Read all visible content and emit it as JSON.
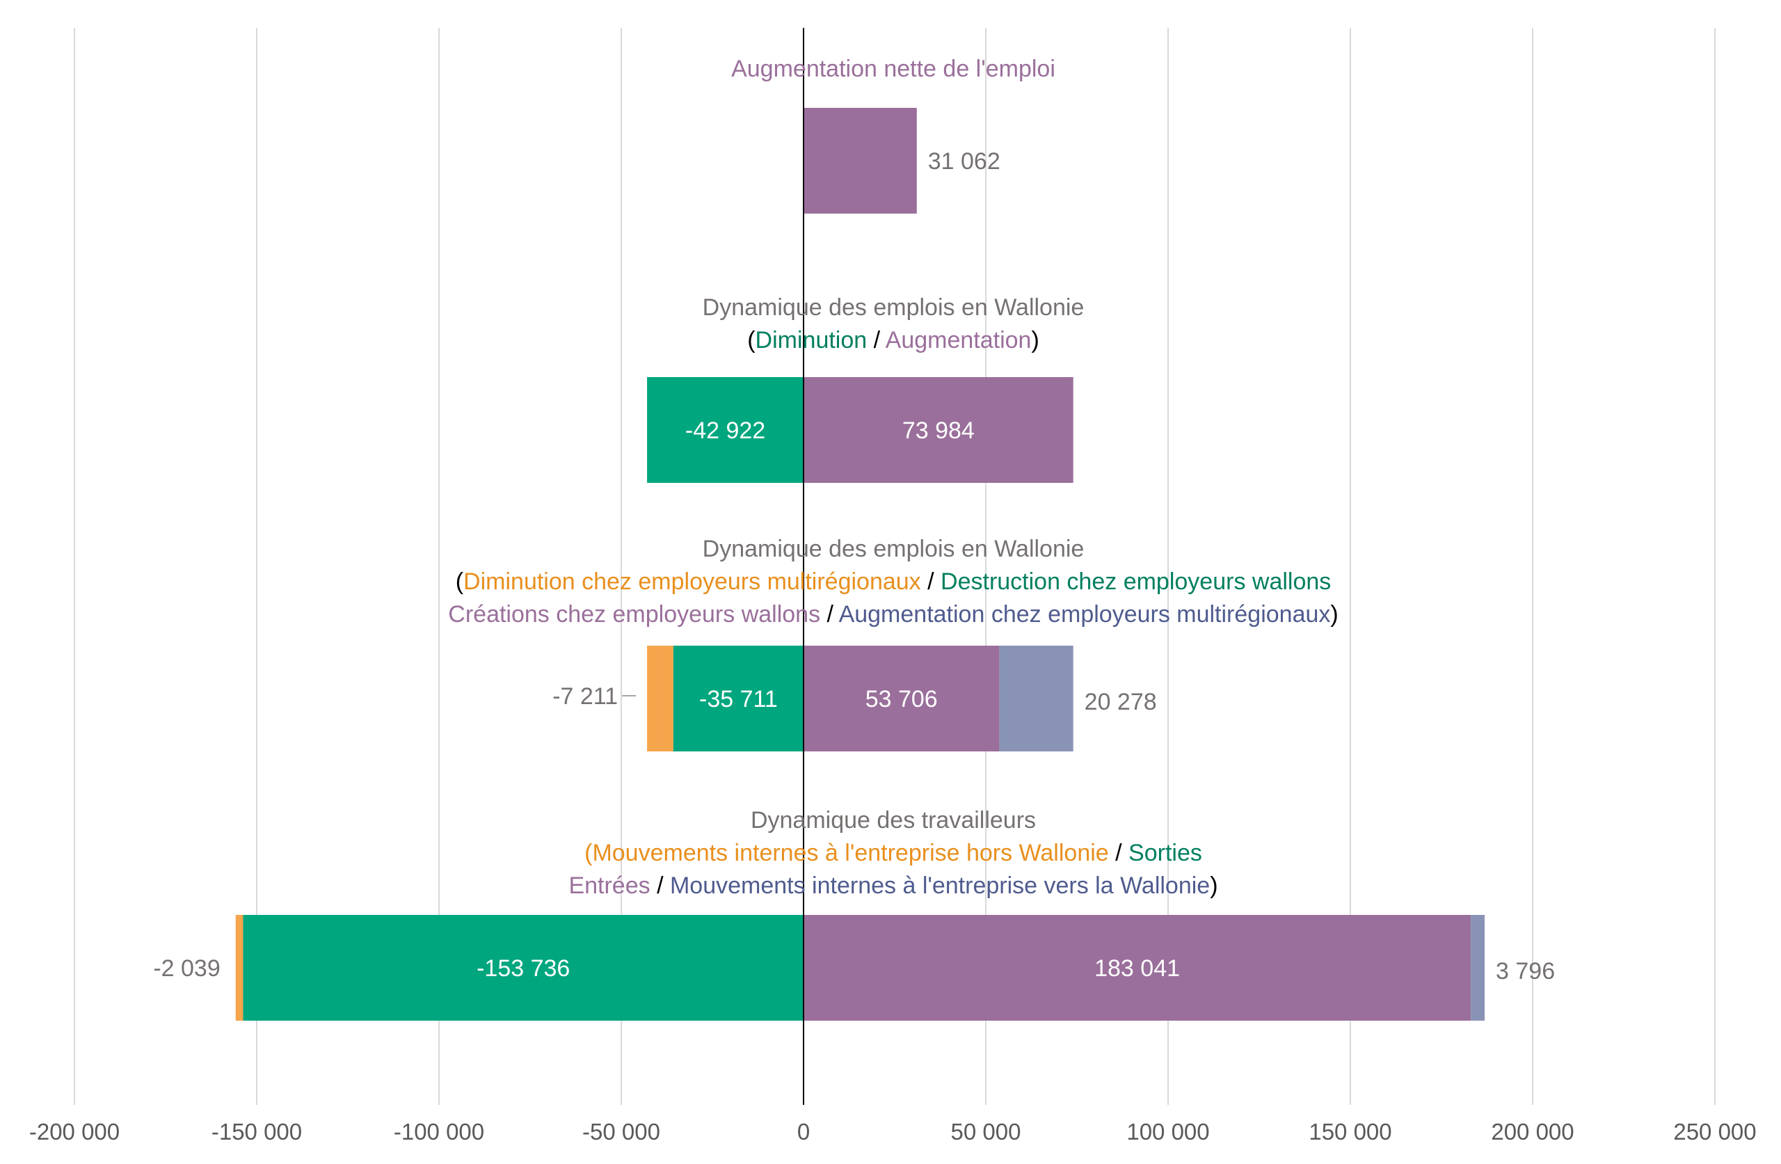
{
  "chart_data": {
    "type": "bar",
    "orientation": "horizontal",
    "stacked": true,
    "xlim": [
      -200000,
      250000
    ],
    "x_ticks": [
      {
        "value": -200000,
        "label": "-200 000"
      },
      {
        "value": -150000,
        "label": "-150 000"
      },
      {
        "value": -100000,
        "label": "-100 000"
      },
      {
        "value": -50000,
        "label": "-50 000"
      },
      {
        "value": 0,
        "label": "0"
      },
      {
        "value": 50000,
        "label": "50 000"
      },
      {
        "value": 100000,
        "label": "100 000"
      },
      {
        "value": 150000,
        "label": "150 000"
      },
      {
        "value": 200000,
        "label": "200 000"
      },
      {
        "value": 250000,
        "label": "250 000"
      }
    ],
    "grid": "vertical",
    "colors": {
      "purple": "#9a6f9b",
      "green": "#00a67e",
      "orange": "#f5a54b",
      "blue": "#8993b5",
      "gray_text": "#767171",
      "orange_text": "#e98f1d",
      "green_text": "#007f5f",
      "purple_text": "#9a6f9b",
      "blue_text": "#4f5b8e",
      "black": "#000000"
    },
    "groups": [
      {
        "label_lines": [
          [
            {
              "text": "Augmentation nette de l'emploi",
              "color": "purple_text"
            }
          ]
        ],
        "segments": [
          {
            "start": 0,
            "value": 31062,
            "color": "purple",
            "label": "31 062",
            "label_pos": "outside-right"
          }
        ]
      },
      {
        "label_lines": [
          [
            {
              "text": "Dynamique des emplois en Wallonie",
              "color": "gray_text"
            }
          ],
          [
            {
              "text": "(",
              "color": "black"
            },
            {
              "text": "Diminution",
              "color": "green_text"
            },
            {
              "text": " / ",
              "color": "black"
            },
            {
              "text": "Augmentation",
              "color": "purple_text"
            },
            {
              "text": ")",
              "color": "black"
            }
          ]
        ],
        "segments": [
          {
            "start": 0,
            "value": -42922,
            "color": "green",
            "label": "-42 922",
            "label_pos": "inside"
          },
          {
            "start": 0,
            "value": 73984,
            "color": "purple",
            "label": "73 984",
            "label_pos": "inside"
          }
        ]
      },
      {
        "label_lines": [
          [
            {
              "text": "Dynamique des emplois en Wallonie",
              "color": "gray_text"
            }
          ],
          [
            {
              "text": "(",
              "color": "black"
            },
            {
              "text": "Diminution chez employeurs multirégionaux",
              "color": "orange_text"
            },
            {
              "text": " / ",
              "color": "black"
            },
            {
              "text": "Destruction chez employeurs wallons",
              "color": "green_text"
            }
          ],
          [
            {
              "text": "Créations chez employeurs wallons",
              "color": "purple_text"
            },
            {
              "text": " / ",
              "color": "black"
            },
            {
              "text": "Augmentation chez employeurs multirégionaux",
              "color": "blue_text"
            },
            {
              "text": ")",
              "color": "black"
            }
          ]
        ],
        "segments": [
          {
            "start": -35711,
            "value": -7211,
            "color": "orange",
            "label": "-7 211",
            "label_pos": "outside-left"
          },
          {
            "start": 0,
            "value": -35711,
            "color": "green",
            "label": "-35 711",
            "label_pos": "inside"
          },
          {
            "start": 0,
            "value": 53706,
            "color": "purple",
            "label": "53 706",
            "label_pos": "inside"
          },
          {
            "start": 53706,
            "value": 20278,
            "color": "blue",
            "label": "20 278",
            "label_pos": "outside-right"
          }
        ]
      },
      {
        "label_lines": [
          [
            {
              "text": "Dynamique des travailleurs",
              "color": "gray_text"
            }
          ],
          [
            {
              "text": "(Mouvements internes à l'entreprise hors Wallonie",
              "color": "orange_text"
            },
            {
              "text": " / ",
              "color": "black"
            },
            {
              "text": "Sorties",
              "color": "green_text"
            }
          ],
          [
            {
              "text": "Entrées",
              "color": "purple_text"
            },
            {
              "text": " / ",
              "color": "black"
            },
            {
              "text": "Mouvements internes à l'entreprise vers la Wallonie",
              "color": "blue_text"
            },
            {
              "text": ")",
              "color": "black"
            }
          ]
        ],
        "segments": [
          {
            "start": -153736,
            "value": -2039,
            "color": "orange",
            "label": "-2 039",
            "label_pos": "outside-left"
          },
          {
            "start": 0,
            "value": -153736,
            "color": "green",
            "label": "-153 736",
            "label_pos": "inside"
          },
          {
            "start": 0,
            "value": 183041,
            "color": "purple",
            "label": "183 041",
            "label_pos": "inside"
          },
          {
            "start": 183041,
            "value": 3796,
            "color": "blue",
            "label": "3 796",
            "label_pos": "outside-right"
          }
        ]
      }
    ]
  }
}
